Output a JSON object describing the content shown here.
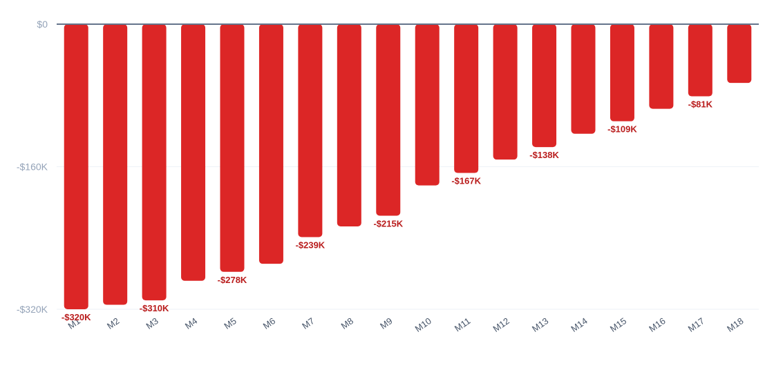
{
  "chart_data": {
    "type": "bar",
    "title": "",
    "xlabel": "",
    "ylabel": "",
    "categories": [
      "M1",
      "M2",
      "M3",
      "M4",
      "M5",
      "M6",
      "M7",
      "M8",
      "M9",
      "M10",
      "M11",
      "M12",
      "M13",
      "M14",
      "M15",
      "M16",
      "M17",
      "M18"
    ],
    "values": [
      -320,
      -315,
      -310,
      -288,
      -278,
      -269,
      -239,
      -227,
      -215,
      -181,
      -167,
      -152,
      -138,
      -123,
      -109,
      -95,
      -81,
      -66
    ],
    "value_unit": "$K",
    "ylim": [
      -320,
      0
    ],
    "y_ticks": [
      {
        "value": 0,
        "label": "$0"
      },
      {
        "value": -160,
        "label": "-$160K"
      },
      {
        "value": -320,
        "label": "-$320K"
      }
    ],
    "data_labels": [
      {
        "index": 0,
        "label": "-$320K"
      },
      {
        "index": 2,
        "label": "-$310K"
      },
      {
        "index": 4,
        "label": "-$278K"
      },
      {
        "index": 6,
        "label": "-$239K"
      },
      {
        "index": 8,
        "label": "-$215K"
      },
      {
        "index": 10,
        "label": "-$167K"
      },
      {
        "index": 12,
        "label": "-$138K"
      },
      {
        "index": 14,
        "label": "-$109K"
      },
      {
        "index": 16,
        "label": "-$81K"
      }
    ],
    "grid": true,
    "legend": "none",
    "colors": {
      "bar": "#dc2626",
      "data_label": "#b91c1c",
      "zero_line": "#64748b",
      "grid": "#eef2f7",
      "y_tick": "#94a3b8",
      "x_tick": "#475569"
    }
  }
}
